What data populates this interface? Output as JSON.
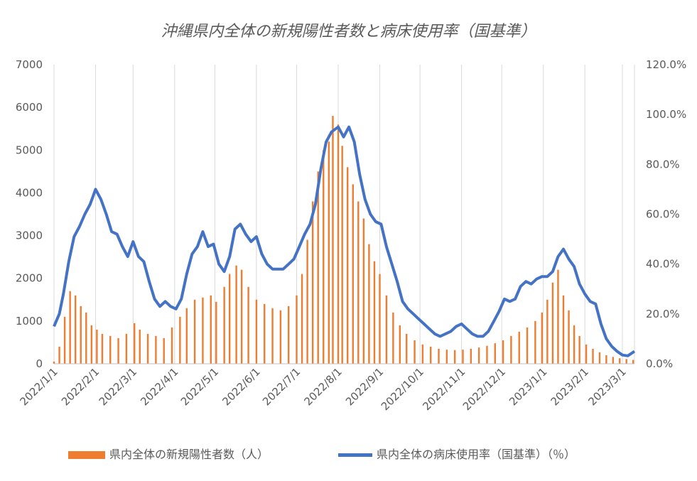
{
  "chart_data": {
    "type": "bar+line",
    "title": "沖縄県内全体の新規陽性者数と病床使用率（国基準）",
    "y_left": {
      "min": 0,
      "max": 7000,
      "ticks": [
        "0",
        "1000",
        "2000",
        "3000",
        "4000",
        "5000",
        "6000",
        "7000"
      ]
    },
    "y_right": {
      "min": 0.0,
      "max": 120.0,
      "unit": "%",
      "ticks": [
        "0.0%",
        "20.0%",
        "40.0%",
        "60.0%",
        "80.0%",
        "100.0%",
        "120.0%"
      ]
    },
    "x_range": [
      "2022-01-01",
      "2023-03-10"
    ],
    "x_tick_labels": [
      "2022/1/1",
      "2022/2/1",
      "2022/3/1",
      "2022/4/1",
      "2022/5/1",
      "2022/6/1",
      "2022/7/1",
      "2022/8/1",
      "2022/9/1",
      "2022/10/1",
      "2022/11/1",
      "2022/12/1",
      "2023/1/1",
      "2023/2/1",
      "2023/3/1"
    ],
    "grid": "vertical",
    "legend_position": "bottom",
    "series": [
      {
        "name": "県内全体の新規陽性者数（人）",
        "kind": "bar",
        "axis": "left",
        "color": "#ED7D31",
        "points": [
          [
            "2022-01-01",
            50
          ],
          [
            "2022-01-05",
            400
          ],
          [
            "2022-01-09",
            1100
          ],
          [
            "2022-01-13",
            1700
          ],
          [
            "2022-01-17",
            1600
          ],
          [
            "2022-01-21",
            1350
          ],
          [
            "2022-01-25",
            1200
          ],
          [
            "2022-01-29",
            900
          ],
          [
            "2022-02-02",
            800
          ],
          [
            "2022-02-06",
            700
          ],
          [
            "2022-02-12",
            650
          ],
          [
            "2022-02-18",
            600
          ],
          [
            "2022-02-24",
            700
          ],
          [
            "2022-03-02",
            950
          ],
          [
            "2022-03-06",
            800
          ],
          [
            "2022-03-12",
            700
          ],
          [
            "2022-03-18",
            650
          ],
          [
            "2022-03-24",
            600
          ],
          [
            "2022-03-30",
            850
          ],
          [
            "2022-04-05",
            1100
          ],
          [
            "2022-04-10",
            1300
          ],
          [
            "2022-04-16",
            1500
          ],
          [
            "2022-04-22",
            1550
          ],
          [
            "2022-04-28",
            1600
          ],
          [
            "2022-05-02",
            1450
          ],
          [
            "2022-05-08",
            1800
          ],
          [
            "2022-05-12",
            2100
          ],
          [
            "2022-05-17",
            2300
          ],
          [
            "2022-05-21",
            2200
          ],
          [
            "2022-05-26",
            1800
          ],
          [
            "2022-06-01",
            1500
          ],
          [
            "2022-06-07",
            1400
          ],
          [
            "2022-06-13",
            1300
          ],
          [
            "2022-06-19",
            1250
          ],
          [
            "2022-06-25",
            1350
          ],
          [
            "2022-07-01",
            1600
          ],
          [
            "2022-07-05",
            2100
          ],
          [
            "2022-07-09",
            2900
          ],
          [
            "2022-07-13",
            3800
          ],
          [
            "2022-07-17",
            4500
          ],
          [
            "2022-07-21",
            5000
          ],
          [
            "2022-07-25",
            5200
          ],
          [
            "2022-07-28",
            5800
          ],
          [
            "2022-08-01",
            5600
          ],
          [
            "2022-08-04",
            5100
          ],
          [
            "2022-08-08",
            4600
          ],
          [
            "2022-08-12",
            4200
          ],
          [
            "2022-08-16",
            3800
          ],
          [
            "2022-08-20",
            3400
          ],
          [
            "2022-08-24",
            2800
          ],
          [
            "2022-08-28",
            2400
          ],
          [
            "2022-09-01",
            2100
          ],
          [
            "2022-09-06",
            1600
          ],
          [
            "2022-09-11",
            1200
          ],
          [
            "2022-09-16",
            900
          ],
          [
            "2022-09-21",
            700
          ],
          [
            "2022-09-27",
            550
          ],
          [
            "2022-10-03",
            450
          ],
          [
            "2022-10-09",
            400
          ],
          [
            "2022-10-15",
            350
          ],
          [
            "2022-10-21",
            330
          ],
          [
            "2022-10-27",
            320
          ],
          [
            "2022-11-02",
            330
          ],
          [
            "2022-11-08",
            350
          ],
          [
            "2022-11-14",
            380
          ],
          [
            "2022-11-20",
            420
          ],
          [
            "2022-11-26",
            480
          ],
          [
            "2022-12-02",
            550
          ],
          [
            "2022-12-08",
            650
          ],
          [
            "2022-12-14",
            750
          ],
          [
            "2022-12-20",
            850
          ],
          [
            "2022-12-26",
            1000
          ],
          [
            "2022-12-31",
            1200
          ],
          [
            "2023-01-04",
            1500
          ],
          [
            "2023-01-08",
            1900
          ],
          [
            "2023-01-12",
            2200
          ],
          [
            "2023-01-16",
            1600
          ],
          [
            "2023-01-20",
            1250
          ],
          [
            "2023-01-24",
            900
          ],
          [
            "2023-01-28",
            650
          ],
          [
            "2023-02-02",
            450
          ],
          [
            "2023-02-07",
            350
          ],
          [
            "2023-02-12",
            270
          ],
          [
            "2023-02-17",
            200
          ],
          [
            "2023-02-22",
            160
          ],
          [
            "2023-02-27",
            130
          ],
          [
            "2023-03-04",
            110
          ],
          [
            "2023-03-09",
            90
          ]
        ]
      },
      {
        "name": "県内全体の病床使用率（国基準）（％）",
        "kind": "line",
        "axis": "right",
        "color": "#4472C4",
        "points": [
          [
            "2022-01-01",
            15
          ],
          [
            "2022-01-05",
            20
          ],
          [
            "2022-01-08",
            28
          ],
          [
            "2022-01-12",
            41
          ],
          [
            "2022-01-16",
            51
          ],
          [
            "2022-01-20",
            55
          ],
          [
            "2022-01-24",
            60
          ],
          [
            "2022-01-28",
            64
          ],
          [
            "2022-02-01",
            70
          ],
          [
            "2022-02-05",
            66
          ],
          [
            "2022-02-09",
            60
          ],
          [
            "2022-02-13",
            53
          ],
          [
            "2022-02-17",
            52
          ],
          [
            "2022-02-21",
            47
          ],
          [
            "2022-02-25",
            43
          ],
          [
            "2022-03-01",
            49
          ],
          [
            "2022-03-05",
            43
          ],
          [
            "2022-03-09",
            41
          ],
          [
            "2022-03-13",
            33
          ],
          [
            "2022-03-17",
            26
          ],
          [
            "2022-03-21",
            23
          ],
          [
            "2022-03-25",
            25
          ],
          [
            "2022-03-29",
            23
          ],
          [
            "2022-04-02",
            22
          ],
          [
            "2022-04-06",
            26
          ],
          [
            "2022-04-10",
            36
          ],
          [
            "2022-04-14",
            44
          ],
          [
            "2022-04-18,",
            47
          ],
          [
            "2022-04-22",
            53
          ],
          [
            "2022-04-26",
            47
          ],
          [
            "2022-04-30",
            48
          ],
          [
            "2022-05-04",
            40
          ],
          [
            "2022-05-08",
            37
          ],
          [
            "2022-05-12",
            43
          ],
          [
            "2022-05-16",
            54
          ],
          [
            "2022-05-20",
            56
          ],
          [
            "2022-05-24",
            52
          ],
          [
            "2022-05-28",
            49
          ],
          [
            "2022-06-01",
            51
          ],
          [
            "2022-06-05",
            44
          ],
          [
            "2022-06-09",
            40
          ],
          [
            "2022-06-13",
            38
          ],
          [
            "2022-06-17",
            38
          ],
          [
            "2022-06-21",
            38
          ],
          [
            "2022-06-25",
            40
          ],
          [
            "2022-06-29",
            42
          ],
          [
            "2022-07-03",
            47
          ],
          [
            "2022-07-07",
            52
          ],
          [
            "2022-07-11",
            56
          ],
          [
            "2022-07-15",
            64
          ],
          [
            "2022-07-19",
            78
          ],
          [
            "2022-07-23",
            89
          ],
          [
            "2022-07-27",
            93
          ],
          [
            "2022-08-01",
            95
          ],
          [
            "2022-08-05",
            91
          ],
          [
            "2022-08-09",
            95
          ],
          [
            "2022-08-13",
            89
          ],
          [
            "2022-08-17",
            76
          ],
          [
            "2022-08-21",
            66
          ],
          [
            "2022-08-25",
            60
          ],
          [
            "2022-08-29",
            57
          ],
          [
            "2022-09-02",
            56
          ],
          [
            "2022-09-06",
            47
          ],
          [
            "2022-09-10",
            40
          ],
          [
            "2022-09-14",
            33
          ],
          [
            "2022-09-18",
            25
          ],
          [
            "2022-09-22",
            22
          ],
          [
            "2022-09-26",
            20
          ],
          [
            "2022-09-30",
            18
          ],
          [
            "2022-10-04",
            16
          ],
          [
            "2022-10-08",
            14
          ],
          [
            "2022-10-12",
            12
          ],
          [
            "2022-10-16",
            11
          ],
          [
            "2022-10-20",
            12
          ],
          [
            "2022-10-24",
            13
          ],
          [
            "2022-10-28",
            15
          ],
          [
            "2022-11-01",
            16
          ],
          [
            "2022-11-05",
            14
          ],
          [
            "2022-11-09",
            12
          ],
          [
            "2022-11-13",
            11
          ],
          [
            "2022-11-17",
            11
          ],
          [
            "2022-11-21",
            13
          ],
          [
            "2022-11-25",
            17
          ],
          [
            "2022-11-29",
            21
          ],
          [
            "2022-12-03",
            26
          ],
          [
            "2022-12-07",
            25
          ],
          [
            "2022-12-11",
            26
          ],
          [
            "2022-12-15",
            31
          ],
          [
            "2022-12-19",
            33
          ],
          [
            "2022-12-23",
            32
          ],
          [
            "2022-12-27",
            34
          ],
          [
            "2022-12-31",
            35
          ],
          [
            "2023-01-04",
            35
          ],
          [
            "2023-01-08",
            37
          ],
          [
            "2023-01-12",
            43
          ],
          [
            "2023-01-16",
            46
          ],
          [
            "2023-01-20",
            42
          ],
          [
            "2023-01-24",
            39
          ],
          [
            "2023-01-28",
            32
          ],
          [
            "2023-02-01",
            28
          ],
          [
            "2023-02-05",
            25
          ],
          [
            "2023-02-09",
            24
          ],
          [
            "2023-02-13",
            16
          ],
          [
            "2023-02-17",
            10
          ],
          [
            "2023-02-21",
            7
          ],
          [
            "2023-02-25",
            5
          ],
          [
            "2023-03-01",
            3.5
          ],
          [
            "2023-03-05",
            3.2
          ],
          [
            "2023-03-10",
            5
          ]
        ]
      }
    ]
  }
}
